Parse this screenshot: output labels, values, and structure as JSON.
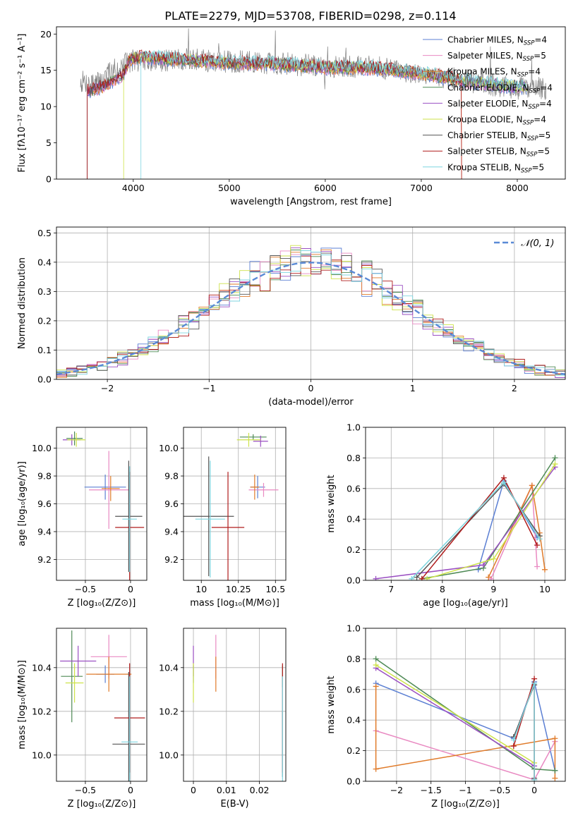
{
  "figure_title": "PLATE=2279, MJD=53708, FIBERID=0298, z=0.114",
  "colors": {
    "c0": "#5b7fd3",
    "c1": "#e98ac2",
    "c2": "#e07b2a",
    "c3": "#4e8a55",
    "c4": "#9a4fc2",
    "c5": "#cde24a",
    "c6": "#555555",
    "c7": "#b01c1c",
    "c8": "#7fd6e0"
  },
  "chart_data": [
    {
      "id": "spectrum",
      "type": "line",
      "xlabel": "wavelength [Angstrom, rest frame]",
      "ylabel": "Flux [fλ10⁻¹⁷ erg cm⁻² s⁻¹ A⁻¹]",
      "xlim": [
        3200,
        8500
      ],
      "ylim": [
        0,
        21
      ],
      "xticks": [
        4000,
        5000,
        6000,
        7000,
        8000
      ],
      "yticks": [
        0,
        5,
        10,
        15,
        20
      ],
      "grid": false,
      "legend_position": "top-right",
      "legend": [
        "Chabrier MILES, N_SSP=4",
        "Salpeter MILES, N_SSP=5",
        "Kroupa MILES, N_SSP=4",
        "Chabrier ELODIE, N_SSP=4",
        "Salpeter ELODIE, N_SSP=4",
        "Kroupa ELODIE, N_SSP=4",
        "Chabrier STELIB, N_SSP=5",
        "Salpeter STELIB, N_SSP=5",
        "Kroupa STELIB, N_SSP=5"
      ],
      "legend_base": [
        "Chabrier MILES, N",
        "Salpeter MILES, N",
        "Kroupa MILES, N",
        "Chabrier ELODIE, N",
        "Salpeter ELODIE, N",
        "Kroupa ELODIE, N",
        "Chabrier STELIB, N",
        "Salpeter STELIB, N",
        "Kroupa STELIB, N"
      ],
      "legend_sub": "SSP",
      "legend_suffix": [
        "=4",
        "=5",
        "=4",
        "=4",
        "=4",
        "=4",
        "=5",
        "=5",
        "=5"
      ],
      "model_curve": {
        "x": [
          3500,
          3700,
          3900,
          3950,
          4000,
          4100,
          4300,
          4500,
          5000,
          5500,
          6000,
          6500,
          7000,
          7500,
          8000
        ],
        "y": [
          12.0,
          12.9,
          14.5,
          16.2,
          16.6,
          16.8,
          16.6,
          16.5,
          16.0,
          15.9,
          15.4,
          15.3,
          14.6,
          13.4,
          12.7
        ]
      },
      "data_curve": {
        "x": [
          3450,
          3600,
          3800,
          4000,
          4200,
          4500,
          5000,
          5500,
          6000,
          6500,
          7000,
          7500,
          8000,
          8300
        ],
        "y": [
          13.5,
          13.0,
          15.0,
          16.5,
          16.2,
          16.5,
          16.2,
          16.0,
          15.5,
          15.5,
          14.5,
          13.5,
          12.5,
          12.5
        ]
      },
      "data_range": [
        3450,
        8300
      ],
      "model_ranges": [
        [
          3520,
          8100
        ],
        [
          3520,
          8100
        ],
        [
          3520,
          7420
        ],
        [
          3520,
          8100
        ],
        [
          3520,
          8100
        ],
        [
          3900,
          8100
        ],
        [
          3520,
          8100
        ],
        [
          3520,
          7420
        ],
        [
          4080,
          8100
        ]
      ]
    },
    {
      "id": "residual_hist",
      "type": "line",
      "xlabel": "(data-model)/error",
      "ylabel": "Normed distribution",
      "xlim": [
        -2.5,
        2.5
      ],
      "ylim": [
        0,
        0.52
      ],
      "xticks": [
        -2,
        -1,
        0,
        1,
        2
      ],
      "yticks": [
        0.0,
        0.1,
        0.2,
        0.3,
        0.4,
        0.5
      ],
      "grid": true,
      "legend_position": "top-right",
      "legend_label": "𝒩(0, 1)",
      "bin_width": 0.1
    },
    {
      "id": "age_vs_Z",
      "type": "scatter",
      "xlabel": "Z [log₁₀(Z/Z⊙)]",
      "ylabel": "age  [log₁₀(age/yr)]",
      "xlim": [
        -0.82,
        0.18
      ],
      "ylim": [
        9.05,
        10.15
      ],
      "xticks": [
        -0.5,
        0.0
      ],
      "yticks": [
        9.2,
        9.4,
        9.6,
        9.8,
        10.0
      ],
      "grid": true,
      "points": [
        {
          "x": -0.28,
          "y": 9.72,
          "xerr": 0.23,
          "yerr": 0.09
        },
        {
          "x": -0.24,
          "y": 9.7,
          "xerr": 0.22,
          "yerr": 0.28
        },
        {
          "x": -0.22,
          "y": 9.71,
          "xerr": 0.1,
          "yerr": 0.09
        },
        {
          "x": -0.62,
          "y": 10.07,
          "xerr": 0.09,
          "yerr": 0.05
        },
        {
          "x": -0.65,
          "y": 10.06,
          "xerr": 0.1,
          "yerr": 0.04
        },
        {
          "x": -0.6,
          "y": 10.06,
          "xerr": 0.1,
          "yerr": 0.05
        },
        {
          "x": -0.02,
          "y": 9.51,
          "xerr": 0.15,
          "yerr": 0.4
        },
        {
          "x": -0.01,
          "y": 9.43,
          "xerr": 0.16,
          "yerr": 0.4
        },
        {
          "x": -0.01,
          "y": 9.49,
          "xerr": 0.08,
          "yerr": 0.38
        }
      ]
    },
    {
      "id": "age_vs_mass",
      "type": "scatter",
      "xlabel": "mass [log₁₀(M/M⊙)]",
      "ylabel": "",
      "xlim": [
        9.88,
        10.57
      ],
      "ylim": [
        9.05,
        10.15
      ],
      "xticks": [
        10.0,
        10.25,
        10.5
      ],
      "yticks": [
        9.2,
        9.4,
        9.6,
        9.8,
        10.0
      ],
      "grid": true,
      "points": [
        {
          "x": 10.38,
          "y": 9.72,
          "xerr": 0.05,
          "yerr": 0.08
        },
        {
          "x": 10.42,
          "y": 9.7,
          "xerr": 0.1,
          "yerr": 0.05
        },
        {
          "x": 10.36,
          "y": 9.72,
          "xerr": 0.03,
          "yerr": 0.09
        },
        {
          "x": 10.35,
          "y": 10.08,
          "xerr": 0.09,
          "yerr": 0.02
        },
        {
          "x": 10.4,
          "y": 10.05,
          "xerr": 0.05,
          "yerr": 0.04
        },
        {
          "x": 10.32,
          "y": 10.06,
          "xerr": 0.08,
          "yerr": 0.05
        },
        {
          "x": 10.05,
          "y": 9.51,
          "xerr": 0.17,
          "yerr": 0.43
        },
        {
          "x": 10.18,
          "y": 9.43,
          "xerr": 0.11,
          "yerr": 0.4
        },
        {
          "x": 10.06,
          "y": 9.49,
          "xerr": 0.1,
          "yerr": 0.42
        }
      ]
    },
    {
      "id": "weight_vs_age",
      "type": "line",
      "xlabel": "age  [log₁₀(age/yr)]",
      "ylabel": "mass weight",
      "xlim": [
        6.5,
        10.4
      ],
      "ylim": [
        0,
        1.0
      ],
      "xticks": [
        7,
        8,
        9,
        10
      ],
      "yticks": [
        0.0,
        0.2,
        0.4,
        0.6,
        0.8,
        1.0
      ],
      "grid": true,
      "series": [
        {
          "x": [
            8.7,
            9.2,
            9.85
          ],
          "y": [
            0.07,
            0.65,
            0.28
          ]
        },
        {
          "x": [
            8.95,
            9.75,
            9.85
          ],
          "y": [
            0.01,
            0.62,
            0.09
          ]
        },
        {
          "x": [
            8.9,
            9.75,
            9.9,
            10.0
          ],
          "y": [
            0.02,
            0.62,
            0.31,
            0.07
          ]
        },
        {
          "x": [
            7.6,
            8.8,
            10.2
          ],
          "y": [
            0.01,
            0.08,
            0.8
          ]
        },
        {
          "x": [
            6.7,
            8.8,
            10.2
          ],
          "y": [
            0.01,
            0.1,
            0.74
          ]
        },
        {
          "x": [
            7.7,
            9.0,
            10.2
          ],
          "y": [
            0.01,
            0.14,
            0.76
          ]
        },
        {
          "x": [
            7.5,
            9.2,
            9.9
          ],
          "y": [
            0.02,
            0.63,
            0.29
          ]
        },
        {
          "x": [
            7.6,
            9.2,
            9.85
          ],
          "y": [
            0.01,
            0.67,
            0.23
          ]
        },
        {
          "x": [
            7.4,
            9.2,
            9.9
          ],
          "y": [
            0.01,
            0.64,
            0.27
          ]
        }
      ]
    },
    {
      "id": "mass_vs_Z",
      "type": "scatter",
      "xlabel": "Z [log₁₀(Z/Z⊙)]",
      "ylabel": "mass [log₁₀(M/M⊙)]",
      "xlim": [
        -0.82,
        0.18
      ],
      "ylim": [
        9.88,
        10.58
      ],
      "xticks": [
        -0.5,
        0.0
      ],
      "yticks": [
        10.0,
        10.2,
        10.4
      ],
      "grid": true,
      "points": [
        {
          "x": -0.28,
          "y": 10.37,
          "xerr": 0.1,
          "yerr": 0.04
        },
        {
          "x": -0.24,
          "y": 10.45,
          "xerr": 0.2,
          "yerr": 0.1
        },
        {
          "x": -0.24,
          "y": 10.37,
          "xerr": 0.25,
          "yerr": 0.08
        },
        {
          "x": -0.65,
          "y": 10.36,
          "xerr": 0.12,
          "yerr": 0.21
        },
        {
          "x": -0.58,
          "y": 10.43,
          "xerr": 0.2,
          "yerr": 0.07
        },
        {
          "x": -0.62,
          "y": 10.33,
          "xerr": 0.1,
          "yerr": 0.09
        },
        {
          "x": -0.02,
          "y": 10.05,
          "xerr": 0.18,
          "yerr": 0.33
        },
        {
          "x": -0.01,
          "y": 10.17,
          "xerr": 0.17,
          "yerr": 0.25
        },
        {
          "x": -0.01,
          "y": 10.06,
          "xerr": 0.09,
          "yerr": 0.3
        }
      ]
    },
    {
      "id": "mass_vs_ebv",
      "type": "scatter",
      "xlabel": "E(B-V)",
      "ylabel": "",
      "xlim": [
        -0.003,
        0.028
      ],
      "ylim": [
        9.88,
        10.58
      ],
      "xticks": [
        0.0,
        0.01,
        0.02
      ],
      "yticks": [
        10.0,
        10.2,
        10.4
      ],
      "grid": true,
      "points": [
        {
          "x": 0.0,
          "y": 10.37,
          "xerr": 0,
          "yerr": 0.04
        },
        {
          "x": 0.0068,
          "y": 10.45,
          "xerr": 0,
          "yerr": 0.1
        },
        {
          "x": 0.0068,
          "y": 10.37,
          "xerr": 0,
          "yerr": 0.08
        },
        {
          "x": 0.027,
          "y": 10.36,
          "xerr": 0,
          "yerr": 0.05
        },
        {
          "x": 0.0,
          "y": 10.43,
          "xerr": 0,
          "yerr": 0.07
        },
        {
          "x": 0.0,
          "y": 10.33,
          "xerr": 0,
          "yerr": 0.09
        },
        {
          "x": 0.027,
          "y": 10.05,
          "xerr": 0,
          "yerr": 0.15
        },
        {
          "x": 0.027,
          "y": 10.17,
          "xerr": 0,
          "yerr": 0.25
        },
        {
          "x": 0.027,
          "y": 10.06,
          "xerr": 0,
          "yerr": 0.3
        }
      ]
    },
    {
      "id": "weight_vs_Z",
      "type": "line",
      "xlabel": "Z [log₁₀(Z/Z⊙)]",
      "ylabel": "mass weight",
      "xlim": [
        -2.45,
        0.45
      ],
      "ylim": [
        0,
        1.0
      ],
      "xticks": [
        -2.0,
        -1.5,
        -1.0,
        -0.5,
        0.0
      ],
      "yticks": [
        0.0,
        0.2,
        0.4,
        0.6,
        0.8,
        1.0
      ],
      "grid": true,
      "series": [
        {
          "x": [
            -2.3,
            -0.3,
            0.0,
            0.3
          ],
          "y": [
            0.64,
            0.28,
            0.65,
            0.07
          ]
        },
        {
          "x": [
            -2.3,
            0.0,
            0.3
          ],
          "y": [
            0.33,
            0.01,
            0.26
          ]
        },
        {
          "x": [
            -2.3,
            -2.3,
            0.3,
            0.3
          ],
          "y": [
            0.62,
            0.08,
            0.28,
            0.02
          ]
        },
        {
          "x": [
            -2.3,
            0.0,
            0.3
          ],
          "y": [
            0.8,
            0.08,
            0.07
          ]
        },
        {
          "x": [
            -2.3,
            0.0
          ],
          "y": [
            0.74,
            0.1
          ]
        },
        {
          "x": [
            -2.3,
            0.0
          ],
          "y": [
            0.76,
            0.12
          ]
        },
        {
          "x": [
            -0.3,
            0.0,
            0.0
          ],
          "y": [
            0.29,
            0.63,
            0.02
          ]
        },
        {
          "x": [
            -0.3,
            0.0,
            0.0
          ],
          "y": [
            0.23,
            0.67,
            0.01
          ]
        },
        {
          "x": [
            -0.3,
            0.0,
            0.0
          ],
          "y": [
            0.27,
            0.64,
            0.01
          ]
        }
      ]
    }
  ]
}
